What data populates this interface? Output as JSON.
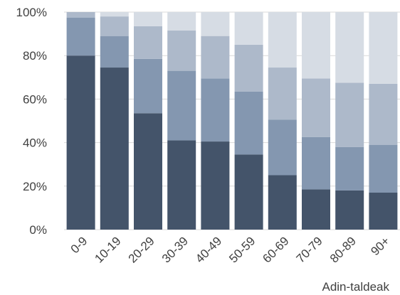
{
  "chart_data": {
    "type": "bar",
    "stacked": true,
    "normalized": true,
    "categories": [
      "0-9",
      "10-19",
      "20-29",
      "30-39",
      "40-49",
      "50-59",
      "60-69",
      "70-79",
      "80-89",
      "90+"
    ],
    "series": [
      {
        "color": "#44546a",
        "values": [
          80,
          74.5,
          53.5,
          41,
          40.5,
          34.5,
          25,
          18.5,
          18,
          17
        ]
      },
      {
        "color": "#8497b0",
        "values": [
          17.5,
          14.5,
          25,
          32,
          29,
          29,
          25.5,
          24,
          20,
          22
        ]
      },
      {
        "color": "#adb9ca",
        "values": [
          2.5,
          9,
          15,
          18.5,
          19.5,
          21.5,
          24,
          27,
          29.5,
          28
        ]
      },
      {
        "color": "#d6dce4",
        "values": [
          0,
          2,
          6.5,
          8.5,
          11,
          15,
          25.5,
          30.5,
          32.5,
          33
        ]
      }
    ],
    "y_ticks": [
      "0%",
      "20%",
      "40%",
      "60%",
      "80%",
      "100%"
    ],
    "ylim": [
      0,
      100
    ],
    "xlabel": "Adin-taldeak",
    "grid": true
  }
}
